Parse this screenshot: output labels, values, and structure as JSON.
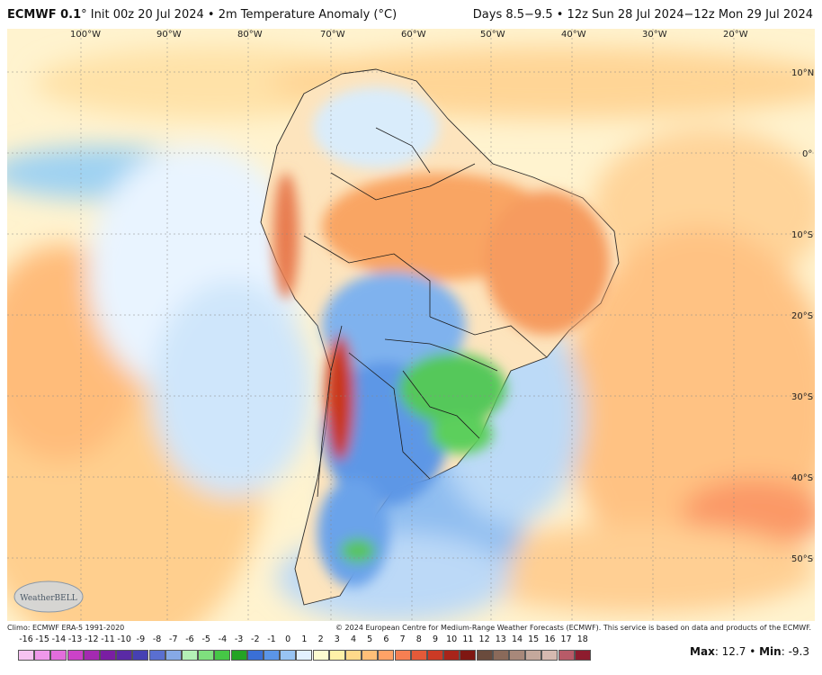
{
  "header": {
    "model": "ECMWF 0.1",
    "degree": "°",
    "init": "Init 00z 20 Jul 2024",
    "sep": "•",
    "field": "2m Temperature Anomaly (°C)",
    "valid": "Days 8.5−9.5 • 12z Sun 28 Jul 2024−12z Mon 29 Jul 2024"
  },
  "map": {
    "lon_labels": [
      "100°W",
      "90°W",
      "80°W",
      "70°W",
      "60°W",
      "50°W",
      "40°W",
      "30°W",
      "20°W"
    ],
    "lat_labels": [
      "10°N",
      "0°",
      "10°S",
      "20°S",
      "30°S",
      "40°S",
      "50°S"
    ]
  },
  "footer": {
    "climo": "Climo: ECMWF ERA-5 1991-2020",
    "copyright": "© 2024 European Centre for Medium-Range Weather Forecasts (ECMWF). This service is based on data and products of the ECMWF."
  },
  "colorbar": {
    "ticks": [
      "-16",
      "-15",
      "-14",
      "-13",
      "-12",
      "-11",
      "-10",
      "-9",
      "-8",
      "-7",
      "-6",
      "-5",
      "-4",
      "-3",
      "-2",
      "-1",
      "0",
      "1",
      "2",
      "3",
      "4",
      "5",
      "6",
      "7",
      "8",
      "9",
      "10",
      "11",
      "12",
      "13",
      "14",
      "15",
      "16",
      "17",
      "18"
    ],
    "colors": [
      "#f6c3f1",
      "#ef98ea",
      "#e36ddc",
      "#cc42c8",
      "#a42ab1",
      "#7a1ea3",
      "#5a2aa5",
      "#4640b3",
      "#5a6fd0",
      "#86a9e6",
      "#b4f0b6",
      "#7fe07e",
      "#46c746",
      "#24a324",
      "#3a6fd6",
      "#5b95e8",
      "#98c4f3",
      "#e3f1ff",
      "#fdfbd0",
      "#fff1a8",
      "#ffd98a",
      "#ffbf78",
      "#ffa266",
      "#f67f52",
      "#e45a39",
      "#cc3a25",
      "#a8241a",
      "#7f1712",
      "#6a4b3d",
      "#8a6a5a",
      "#a8887a",
      "#c4a89c",
      "#d6b9b0",
      "#b85b68",
      "#8e1c2e"
    ]
  },
  "stats": {
    "max_label": "Max",
    "max_value": "12.7",
    "min_label": "Min",
    "min_value": "-9.3"
  },
  "logo": {
    "text": "WeatherBELL"
  }
}
